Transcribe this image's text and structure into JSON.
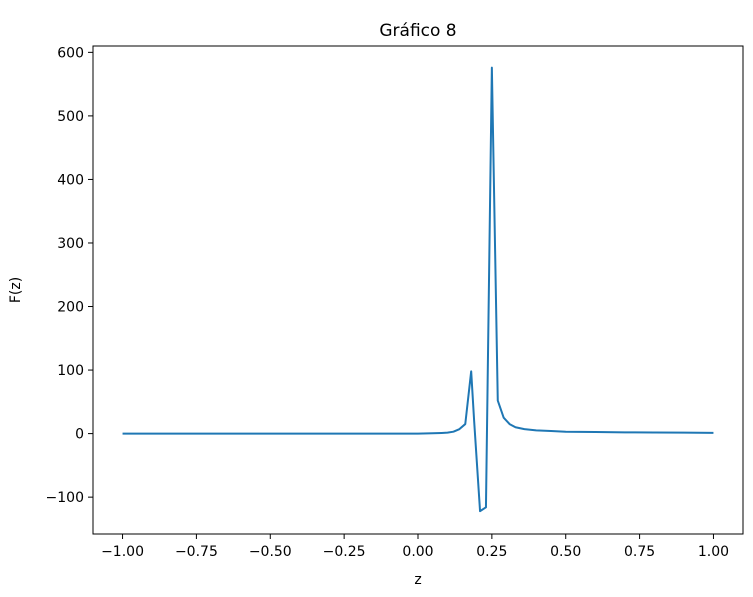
{
  "chart_data": {
    "type": "line",
    "title": "Gráfico 8",
    "xlabel": "z",
    "ylabel": "F(z)",
    "xlim": [
      -1.1,
      1.1
    ],
    "ylim": [
      -158,
      610
    ],
    "grid": false,
    "x_ticks": [
      -1.0,
      -0.75,
      -0.5,
      -0.25,
      0.0,
      0.25,
      0.5,
      0.75,
      1.0
    ],
    "x_tick_labels": [
      "−1.00",
      "−0.75",
      "−0.50",
      "−0.25",
      "0.00",
      "0.25",
      "0.50",
      "0.75",
      "1.00"
    ],
    "y_ticks": [
      -100,
      0,
      100,
      200,
      300,
      400,
      500,
      600
    ],
    "y_tick_labels": [
      "−100",
      "0",
      "100",
      "200",
      "300",
      "400",
      "500",
      "600"
    ],
    "series": [
      {
        "color": "#1f77b4",
        "x": [
          -1.0,
          -0.9,
          -0.8,
          -0.7,
          -0.6,
          -0.5,
          -0.4,
          -0.3,
          -0.2,
          -0.1,
          0.0,
          0.05,
          0.08,
          0.1,
          0.12,
          0.14,
          0.16,
          0.18,
          0.19,
          0.21,
          0.23,
          0.25,
          0.27,
          0.29,
          0.31,
          0.33,
          0.36,
          0.4,
          0.45,
          0.5,
          0.6,
          0.7,
          0.8,
          0.9,
          1.0
        ],
        "y": [
          0,
          0,
          0,
          0,
          0,
          0,
          0,
          0,
          0,
          0,
          0,
          0.5,
          1,
          1.5,
          3,
          7,
          15,
          98,
          20,
          -122,
          -116,
          576,
          52,
          25,
          15,
          10,
          7,
          5,
          4,
          3,
          2.5,
          2,
          1.8,
          1.5,
          1.2
        ]
      }
    ]
  }
}
